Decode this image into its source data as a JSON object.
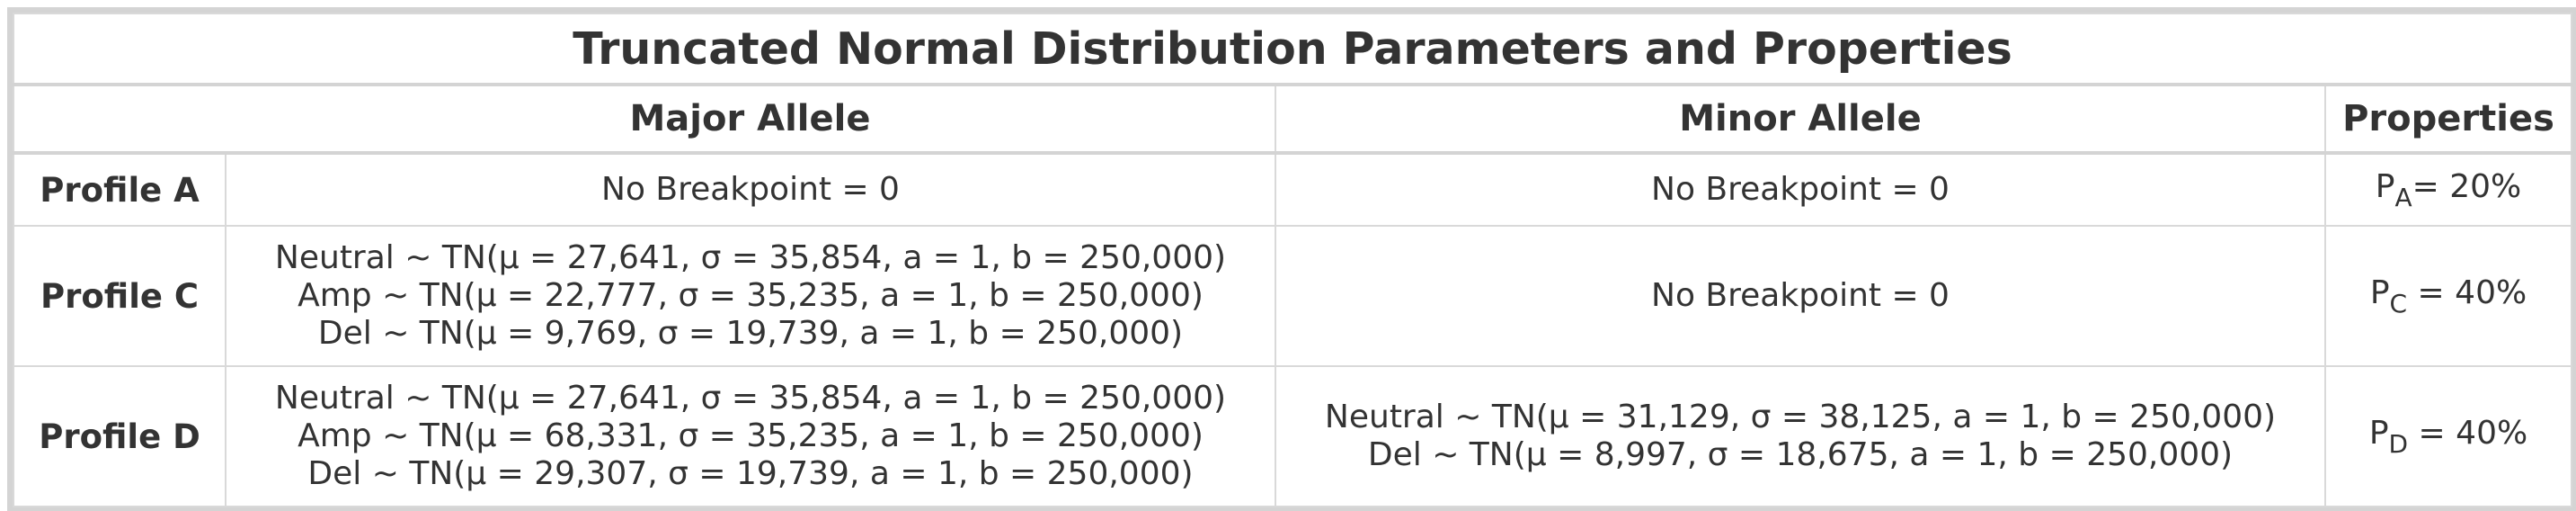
{
  "title": "Truncated Normal Distribution Parameters and Properties",
  "headers": {
    "major": "Major Allele",
    "minor": "Minor Allele",
    "properties": "Properties"
  },
  "rows": [
    {
      "label": "Profile A",
      "major": [
        "No Breakpoint = 0"
      ],
      "minor": [
        "No Breakpoint = 0"
      ],
      "prop_base": "P",
      "prop_sub": "A",
      "prop_value": "= 20%"
    },
    {
      "label": "Profile C",
      "major": [
        "Neutral ~ TN(μ = 27,641, σ = 35,854, a = 1, b = 250,000)",
        "Amp ~ TN(μ = 22,777, σ = 35,235, a = 1, b = 250,000)",
        "Del ~ TN(μ = 9,769, σ = 19,739, a = 1, b = 250,000)"
      ],
      "minor": [
        "No Breakpoint = 0"
      ],
      "prop_base": "P",
      "prop_sub": "C",
      "prop_value": " = 40%"
    },
    {
      "label": "Profile D",
      "major": [
        "Neutral ~ TN(μ = 27,641, σ = 35,854, a = 1, b = 250,000)",
        "Amp ~ TN(μ = 68,331, σ = 35,235, a = 1, b = 250,000)",
        "Del ~ TN(μ = 29,307, σ = 19,739, a = 1, b = 250,000)"
      ],
      "minor": [
        "Neutral ~ TN(μ = 31,129, σ = 38,125, a = 1, b = 250,000)",
        "Del ~ TN(μ = 8,997, σ = 18,675, a = 1, b = 250,000)"
      ],
      "prop_base": "P",
      "prop_sub": "D",
      "prop_value": " = 40%"
    }
  ]
}
